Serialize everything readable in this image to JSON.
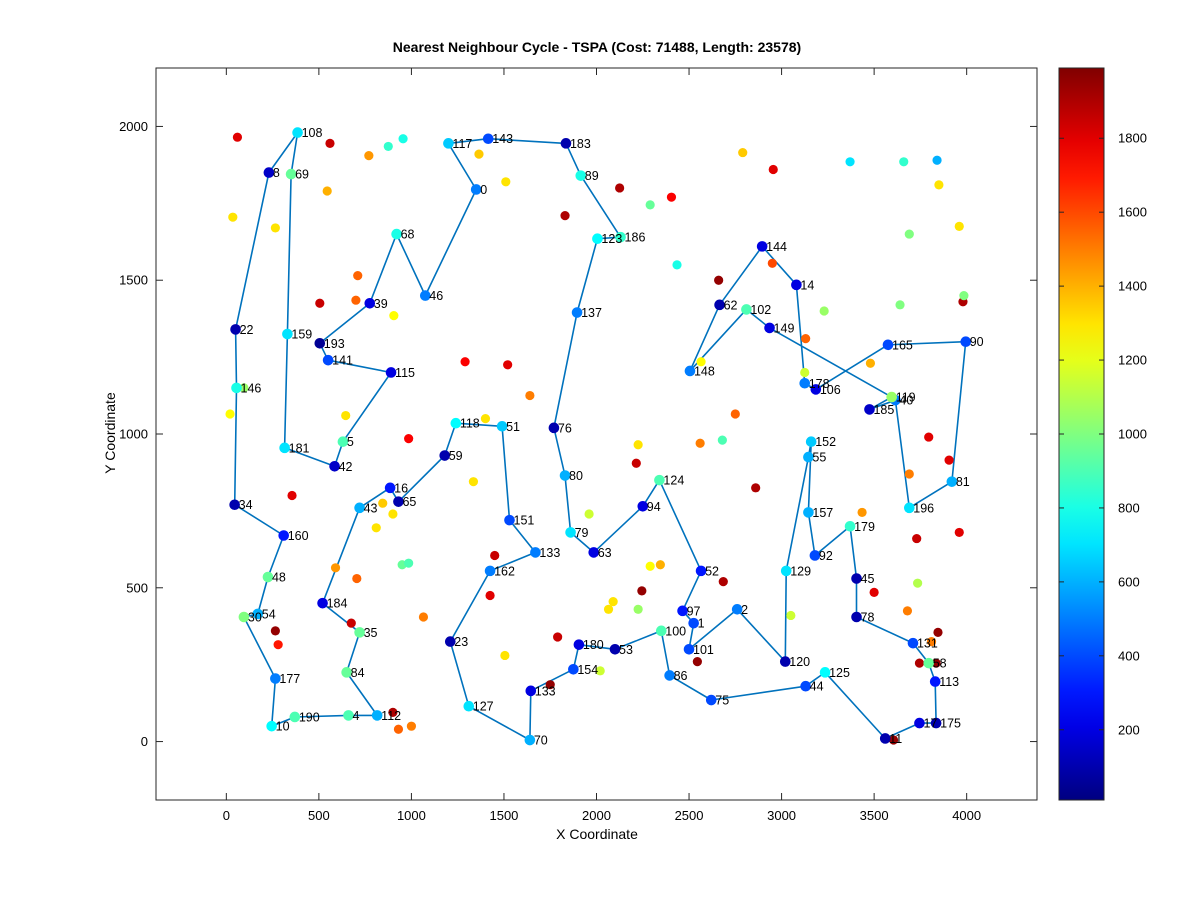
{
  "chart_data": {
    "type": "scatter",
    "title": "Nearest Neighbour Cycle - TSPA (Cost: 71488, Length: 23578)",
    "xlabel": "X Coordinate",
    "ylabel": "Y Coordinate",
    "xlim": [
      -380,
      4380
    ],
    "ylim": [
      -190,
      2190
    ],
    "xticks": [
      "0",
      "500",
      "1000",
      "1500",
      "2000",
      "2500",
      "3000",
      "3500",
      "4000"
    ],
    "yticks": [
      "0",
      "500",
      "1000",
      "1500",
      "2000"
    ],
    "colorbar": {
      "colormap": "jet",
      "cmin": 10,
      "cmax": 1990,
      "ticks": [
        "200",
        "400",
        "600",
        "800",
        "1000",
        "1200",
        "1400",
        "1600",
        "1800"
      ]
    },
    "line_color": "#0072bd",
    "tour_nodes": [
      {
        "id": "108",
        "x": 385,
        "y": 1980,
        "c": 700
      },
      {
        "id": "8",
        "x": 230,
        "y": 1850,
        "c": 150
      },
      {
        "id": "22",
        "x": 50,
        "y": 1340,
        "c": 100
      },
      {
        "id": "146",
        "x": 55,
        "y": 1150,
        "c": 800
      },
      {
        "id": "34",
        "x": 45,
        "y": 770,
        "c": 100
      },
      {
        "id": "160",
        "x": 310,
        "y": 670,
        "c": 300
      },
      {
        "id": "48",
        "x": 225,
        "y": 535,
        "c": 950
      },
      {
        "id": "54",
        "x": 170,
        "y": 415,
        "c": 600
      },
      {
        "id": "30",
        "x": 95,
        "y": 405,
        "c": 1000
      },
      {
        "id": "177",
        "x": 265,
        "y": 205,
        "c": 500
      },
      {
        "id": "10",
        "x": 245,
        "y": 50,
        "c": 750
      },
      {
        "id": "190",
        "x": 370,
        "y": 80,
        "c": 900
      },
      {
        "id": "4",
        "x": 660,
        "y": 85,
        "c": 900
      },
      {
        "id": "112",
        "x": 815,
        "y": 85,
        "c": 600
      },
      {
        "id": "84",
        "x": 650,
        "y": 225,
        "c": 950
      },
      {
        "id": "35",
        "x": 720,
        "y": 355,
        "c": 950
      },
      {
        "id": "184",
        "x": 520,
        "y": 450,
        "c": 200
      },
      {
        "id": "43",
        "x": 720,
        "y": 760,
        "c": 600
      },
      {
        "id": "16",
        "x": 885,
        "y": 825,
        "c": 300
      },
      {
        "id": "65",
        "x": 930,
        "y": 780,
        "c": 100
      },
      {
        "id": "59",
        "x": 1180,
        "y": 930,
        "c": 100
      },
      {
        "id": "118",
        "x": 1240,
        "y": 1035,
        "c": 750
      },
      {
        "id": "51",
        "x": 1490,
        "y": 1025,
        "c": 650
      },
      {
        "id": "151",
        "x": 1530,
        "y": 720,
        "c": 400
      },
      {
        "id": "133",
        "x": 1670,
        "y": 615,
        "c": 500
      },
      {
        "id": "162",
        "x": 1425,
        "y": 555,
        "c": 500
      },
      {
        "id": "23",
        "x": 1210,
        "y": 325,
        "c": 100
      },
      {
        "id": "127",
        "x": 1310,
        "y": 115,
        "c": 700
      },
      {
        "id": "70",
        "x": 1640,
        "y": 5,
        "c": 600
      },
      {
        "id": "133b",
        "x": 1645,
        "y": 165,
        "c": 200,
        "label": "133"
      },
      {
        "id": "154",
        "x": 1875,
        "y": 235,
        "c": 400
      },
      {
        "id": "180",
        "x": 1905,
        "y": 315,
        "c": 200
      },
      {
        "id": "53",
        "x": 2100,
        "y": 300,
        "c": 100
      },
      {
        "id": "100",
        "x": 2350,
        "y": 360,
        "c": 900
      },
      {
        "id": "86",
        "x": 2395,
        "y": 215,
        "c": 500
      },
      {
        "id": "75",
        "x": 2620,
        "y": 135,
        "c": 400
      },
      {
        "id": "44",
        "x": 3130,
        "y": 180,
        "c": 400
      },
      {
        "id": "125",
        "x": 3235,
        "y": 225,
        "c": 750
      },
      {
        "id": "11",
        "x": 3560,
        "y": 10,
        "c": 100
      },
      {
        "id": "17",
        "x": 3745,
        "y": 60,
        "c": 200
      },
      {
        "id": "175",
        "x": 3835,
        "y": 60,
        "c": 100
      },
      {
        "id": "113",
        "x": 3830,
        "y": 195,
        "c": 300
      },
      {
        "id": "58",
        "x": 3795,
        "y": 255,
        "c": 950
      },
      {
        "id": "131",
        "x": 3710,
        "y": 320,
        "c": 400
      },
      {
        "id": "78",
        "x": 3405,
        "y": 405,
        "c": 100
      },
      {
        "id": "45",
        "x": 3405,
        "y": 530,
        "c": 100
      },
      {
        "id": "179",
        "x": 3370,
        "y": 700,
        "c": 850
      },
      {
        "id": "92",
        "x": 3180,
        "y": 605,
        "c": 400
      },
      {
        "id": "157",
        "x": 3145,
        "y": 745,
        "c": 600
      },
      {
        "id": "152",
        "x": 3160,
        "y": 975,
        "c": 650
      },
      {
        "id": "55",
        "x": 3145,
        "y": 925,
        "c": 600
      },
      {
        "id": "129",
        "x": 3025,
        "y": 555,
        "c": 700
      },
      {
        "id": "120",
        "x": 3020,
        "y": 260,
        "c": 100
      },
      {
        "id": "2",
        "x": 2760,
        "y": 430,
        "c": 500
      },
      {
        "id": "101",
        "x": 2500,
        "y": 300,
        "c": 400
      },
      {
        "id": "1",
        "x": 2525,
        "y": 385,
        "c": 400
      },
      {
        "id": "97",
        "x": 2465,
        "y": 425,
        "c": 300
      },
      {
        "id": "52",
        "x": 2565,
        "y": 555,
        "c": 300
      },
      {
        "id": "124",
        "x": 2340,
        "y": 850,
        "c": 900
      },
      {
        "id": "94",
        "x": 2250,
        "y": 765,
        "c": 200
      },
      {
        "id": "63",
        "x": 1985,
        "y": 615,
        "c": 200
      },
      {
        "id": "79",
        "x": 1860,
        "y": 680,
        "c": 700
      },
      {
        "id": "80",
        "x": 1830,
        "y": 865,
        "c": 600
      },
      {
        "id": "76",
        "x": 1770,
        "y": 1020,
        "c": 100
      },
      {
        "id": "137",
        "x": 1895,
        "y": 1395,
        "c": 500
      },
      {
        "id": "123",
        "x": 2005,
        "y": 1635,
        "c": 750
      },
      {
        "id": "186",
        "x": 2130,
        "y": 1640,
        "c": 850
      },
      {
        "id": "89",
        "x": 1915,
        "y": 1840,
        "c": 800
      },
      {
        "id": "183",
        "x": 1835,
        "y": 1945,
        "c": 100
      },
      {
        "id": "143",
        "x": 1415,
        "y": 1960,
        "c": 400
      },
      {
        "id": "117",
        "x": 1200,
        "y": 1945,
        "c": 650
      },
      {
        "id": "0",
        "x": 1350,
        "y": 1795,
        "c": 500
      },
      {
        "id": "46",
        "x": 1075,
        "y": 1450,
        "c": 500
      },
      {
        "id": "68",
        "x": 920,
        "y": 1650,
        "c": 800
      },
      {
        "id": "39",
        "x": 775,
        "y": 1425,
        "c": 200
      },
      {
        "id": "193",
        "x": 505,
        "y": 1295,
        "c": 50
      },
      {
        "id": "141",
        "x": 550,
        "y": 1240,
        "c": 400
      },
      {
        "id": "115",
        "x": 890,
        "y": 1200,
        "c": 200
      },
      {
        "id": "5",
        "x": 630,
        "y": 975,
        "c": 900
      },
      {
        "id": "42",
        "x": 585,
        "y": 895,
        "c": 150
      },
      {
        "id": "181",
        "x": 315,
        "y": 955,
        "c": 700
      },
      {
        "id": "159",
        "x": 330,
        "y": 1325,
        "c": 700
      },
      {
        "id": "69",
        "x": 350,
        "y": 1845,
        "c": 950
      }
    ],
    "tour_lines": [
      {
        "id": "148",
        "x": 2505,
        "y": 1205,
        "c": 500
      },
      {
        "id": "62",
        "x": 2665,
        "y": 1420,
        "c": 100
      },
      {
        "id": "144",
        "x": 2895,
        "y": 1610,
        "c": 200
      },
      {
        "id": "14",
        "x": 3080,
        "y": 1485,
        "c": 200
      },
      {
        "id": "178",
        "x": 3125,
        "y": 1165,
        "c": 500
      },
      {
        "id": "106",
        "x": 3185,
        "y": 1145,
        "c": 200
      },
      {
        "id": "165",
        "x": 3575,
        "y": 1290,
        "c": 400
      },
      {
        "id": "90",
        "x": 3995,
        "y": 1300,
        "c": 400
      },
      {
        "id": "81",
        "x": 3920,
        "y": 845,
        "c": 600
      },
      {
        "id": "196",
        "x": 3690,
        "y": 760,
        "c": 700
      },
      {
        "id": "40",
        "x": 3615,
        "y": 1110,
        "c": 500
      },
      {
        "id": "185",
        "x": 3475,
        "y": 1080,
        "c": 150
      },
      {
        "id": "119",
        "x": 3595,
        "y": 1120,
        "c": 1050
      },
      {
        "id": "149",
        "x": 2935,
        "y": 1345,
        "c": 200
      },
      {
        "id": "102",
        "x": 2810,
        "y": 1405,
        "c": 900
      }
    ],
    "extra_points": [
      {
        "x": 60,
        "y": 1965,
        "c": 1800
      },
      {
        "x": 560,
        "y": 1945,
        "c": 1850
      },
      {
        "x": 770,
        "y": 1905,
        "c": 1450
      },
      {
        "x": 875,
        "y": 1935,
        "c": 850
      },
      {
        "x": 955,
        "y": 1960,
        "c": 800
      },
      {
        "x": 1365,
        "y": 1910,
        "c": 1350
      },
      {
        "x": 1510,
        "y": 1820,
        "c": 1300
      },
      {
        "x": 2790,
        "y": 1915,
        "c": 1350
      },
      {
        "x": 2955,
        "y": 1860,
        "c": 1800
      },
      {
        "x": 3370,
        "y": 1885,
        "c": 700
      },
      {
        "x": 3660,
        "y": 1885,
        "c": 850
      },
      {
        "x": 3840,
        "y": 1890,
        "c": 600
      },
      {
        "x": 3850,
        "y": 1810,
        "c": 1300
      },
      {
        "x": 545,
        "y": 1790,
        "c": 1400
      },
      {
        "x": 1830,
        "y": 1710,
        "c": 1900
      },
      {
        "x": 2125,
        "y": 1800,
        "c": 1900
      },
      {
        "x": 2290,
        "y": 1745,
        "c": 950
      },
      {
        "x": 2405,
        "y": 1770,
        "c": 1750
      },
      {
        "x": 35,
        "y": 1705,
        "c": 1300
      },
      {
        "x": 265,
        "y": 1670,
        "c": 1300
      },
      {
        "x": 3960,
        "y": 1675,
        "c": 1300
      },
      {
        "x": 3690,
        "y": 1650,
        "c": 1000
      },
      {
        "x": 2435,
        "y": 1550,
        "c": 800
      },
      {
        "x": 2950,
        "y": 1555,
        "c": 1600
      },
      {
        "x": 2660,
        "y": 1500,
        "c": 1950
      },
      {
        "x": 710,
        "y": 1515,
        "c": 1550
      },
      {
        "x": 700,
        "y": 1435,
        "c": 1550
      },
      {
        "x": 505,
        "y": 1425,
        "c": 1850
      },
      {
        "x": 3980,
        "y": 1430,
        "c": 1900
      },
      {
        "x": 3985,
        "y": 1450,
        "c": 1000
      },
      {
        "x": 3640,
        "y": 1420,
        "c": 1000
      },
      {
        "x": 3230,
        "y": 1400,
        "c": 1050
      },
      {
        "x": 905,
        "y": 1385,
        "c": 1250
      },
      {
        "x": 3130,
        "y": 1310,
        "c": 1550
      },
      {
        "x": 1290,
        "y": 1235,
        "c": 1750
      },
      {
        "x": 1520,
        "y": 1225,
        "c": 1800
      },
      {
        "x": 2565,
        "y": 1235,
        "c": 1250
      },
      {
        "x": 3480,
        "y": 1230,
        "c": 1400
      },
      {
        "x": 3125,
        "y": 1200,
        "c": 1150
      },
      {
        "x": 1640,
        "y": 1125,
        "c": 1500
      },
      {
        "x": 2750,
        "y": 1065,
        "c": 1550
      },
      {
        "x": 1400,
        "y": 1050,
        "c": 1300
      },
      {
        "x": 645,
        "y": 1060,
        "c": 1300
      },
      {
        "x": 20,
        "y": 1065,
        "c": 1250
      },
      {
        "x": 95,
        "y": 1150,
        "c": 1050
      },
      {
        "x": 985,
        "y": 985,
        "c": 1750
      },
      {
        "x": 2225,
        "y": 965,
        "c": 1300
      },
      {
        "x": 2560,
        "y": 970,
        "c": 1500
      },
      {
        "x": 2680,
        "y": 980,
        "c": 900
      },
      {
        "x": 3795,
        "y": 990,
        "c": 1800
      },
      {
        "x": 3905,
        "y": 915,
        "c": 1800
      },
      {
        "x": 2215,
        "y": 905,
        "c": 1850
      },
      {
        "x": 3690,
        "y": 870,
        "c": 1500
      },
      {
        "x": 1335,
        "y": 845,
        "c": 1300
      },
      {
        "x": 2860,
        "y": 825,
        "c": 1900
      },
      {
        "x": 355,
        "y": 800,
        "c": 1800
      },
      {
        "x": 845,
        "y": 775,
        "c": 1350
      },
      {
        "x": 900,
        "y": 740,
        "c": 1300
      },
      {
        "x": 1960,
        "y": 740,
        "c": 1150
      },
      {
        "x": 3435,
        "y": 745,
        "c": 1450
      },
      {
        "x": 810,
        "y": 695,
        "c": 1300
      },
      {
        "x": 3960,
        "y": 680,
        "c": 1800
      },
      {
        "x": 3730,
        "y": 660,
        "c": 1850
      },
      {
        "x": 1450,
        "y": 605,
        "c": 1850
      },
      {
        "x": 2290,
        "y": 570,
        "c": 1250
      },
      {
        "x": 2345,
        "y": 575,
        "c": 1400
      },
      {
        "x": 950,
        "y": 575,
        "c": 950
      },
      {
        "x": 985,
        "y": 580,
        "c": 900
      },
      {
        "x": 590,
        "y": 565,
        "c": 1450
      },
      {
        "x": 705,
        "y": 530,
        "c": 1550
      },
      {
        "x": 3735,
        "y": 515,
        "c": 1100
      },
      {
        "x": 2685,
        "y": 520,
        "c": 1900
      },
      {
        "x": 2245,
        "y": 490,
        "c": 1950
      },
      {
        "x": 3500,
        "y": 485,
        "c": 1800
      },
      {
        "x": 1425,
        "y": 475,
        "c": 1800
      },
      {
        "x": 2090,
        "y": 455,
        "c": 1300
      },
      {
        "x": 2065,
        "y": 430,
        "c": 1300
      },
      {
        "x": 2225,
        "y": 430,
        "c": 1050
      },
      {
        "x": 3050,
        "y": 410,
        "c": 1150
      },
      {
        "x": 3680,
        "y": 425,
        "c": 1500
      },
      {
        "x": 1065,
        "y": 405,
        "c": 1500
      },
      {
        "x": 675,
        "y": 385,
        "c": 1850
      },
      {
        "x": 265,
        "y": 360,
        "c": 1950
      },
      {
        "x": 280,
        "y": 315,
        "c": 1700
      },
      {
        "x": 1790,
        "y": 340,
        "c": 1850
      },
      {
        "x": 3810,
        "y": 325,
        "c": 1500
      },
      {
        "x": 3845,
        "y": 355,
        "c": 1950
      },
      {
        "x": 1505,
        "y": 280,
        "c": 1300
      },
      {
        "x": 2545,
        "y": 260,
        "c": 1950
      },
      {
        "x": 3745,
        "y": 255,
        "c": 1900
      },
      {
        "x": 3835,
        "y": 255,
        "c": 1950
      },
      {
        "x": 2020,
        "y": 230,
        "c": 1150
      },
      {
        "x": 1750,
        "y": 185,
        "c": 1950
      },
      {
        "x": 900,
        "y": 95,
        "c": 1900
      },
      {
        "x": 1000,
        "y": 50,
        "c": 1500
      },
      {
        "x": 930,
        "y": 40,
        "c": 1550
      },
      {
        "x": 3605,
        "y": 5,
        "c": 1950
      }
    ]
  }
}
